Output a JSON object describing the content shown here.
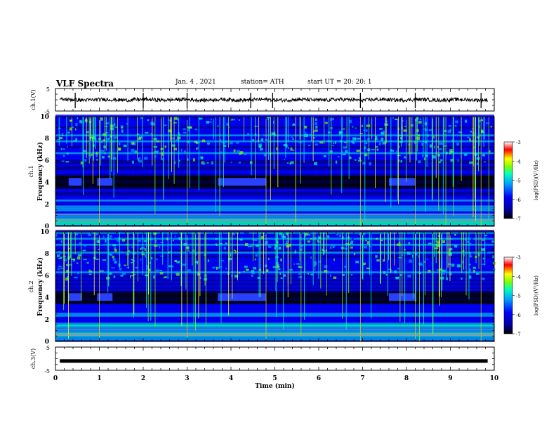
{
  "header": {
    "title": "VLF Spectra",
    "date": "Jan. 4 , 2021",
    "station": "station= ATH",
    "start_ut": "start UT =  20: 20: 1"
  },
  "colors": {
    "background": "#ffffff",
    "trace": "#000000",
    "colormap": [
      "#000000",
      "#0000a0",
      "#0000ff",
      "#00a0ff",
      "#00ffc0",
      "#80ff00",
      "#ffff00",
      "#ff0000",
      "#ffffff"
    ]
  },
  "chart_data": [
    {
      "type": "line",
      "panel": "ch1",
      "ylabel": "ch.1(V)",
      "yticks": [
        "5",
        "-5"
      ],
      "ylim": [
        -5,
        5
      ],
      "xlim": [
        0,
        10
      ],
      "description_values": {
        "mean_v": 0,
        "amplitude_v": 0.8
      }
    },
    {
      "type": "heatmap",
      "panel": "ch1-spectrogram",
      "ylabel": "ch.1 Frequency (kHz)",
      "yticks": [
        "0",
        "2",
        "4",
        "6",
        "8",
        "10"
      ],
      "ylim": [
        0,
        10
      ],
      "xlim": [
        0,
        10
      ],
      "colorbar": {
        "label": "log(PSD)(V²/Hz)",
        "ticks": [
          "-3",
          "-4",
          "-5",
          "-6",
          "-7"
        ],
        "range": [
          -7,
          -3
        ]
      }
    },
    {
      "type": "heatmap",
      "panel": "ch2-spectrogram",
      "ylabel": "ch.2 Frequency (kHz)",
      "yticks": [
        "0",
        "2",
        "4",
        "6",
        "8",
        "10"
      ],
      "ylim": [
        0,
        10
      ],
      "xlim": [
        0,
        10
      ],
      "colorbar": {
        "label": "log(PSD)(V²/Hz)",
        "ticks": [
          "-3",
          "-4",
          "-5",
          "-6",
          "-7"
        ],
        "range": [
          -7,
          -3
        ]
      }
    },
    {
      "type": "line",
      "panel": "ch3",
      "ylabel": "ch.3(V)",
      "yticks": [
        "5",
        "-5"
      ],
      "ylim": [
        -5,
        5
      ],
      "xlim": [
        0,
        10
      ],
      "description_values": {
        "constant_v": -1
      }
    }
  ],
  "xaxis": {
    "label": "Time (min)",
    "ticks": [
      "0",
      "1",
      "2",
      "3",
      "4",
      "5",
      "6",
      "7",
      "8",
      "9",
      "10"
    ]
  }
}
